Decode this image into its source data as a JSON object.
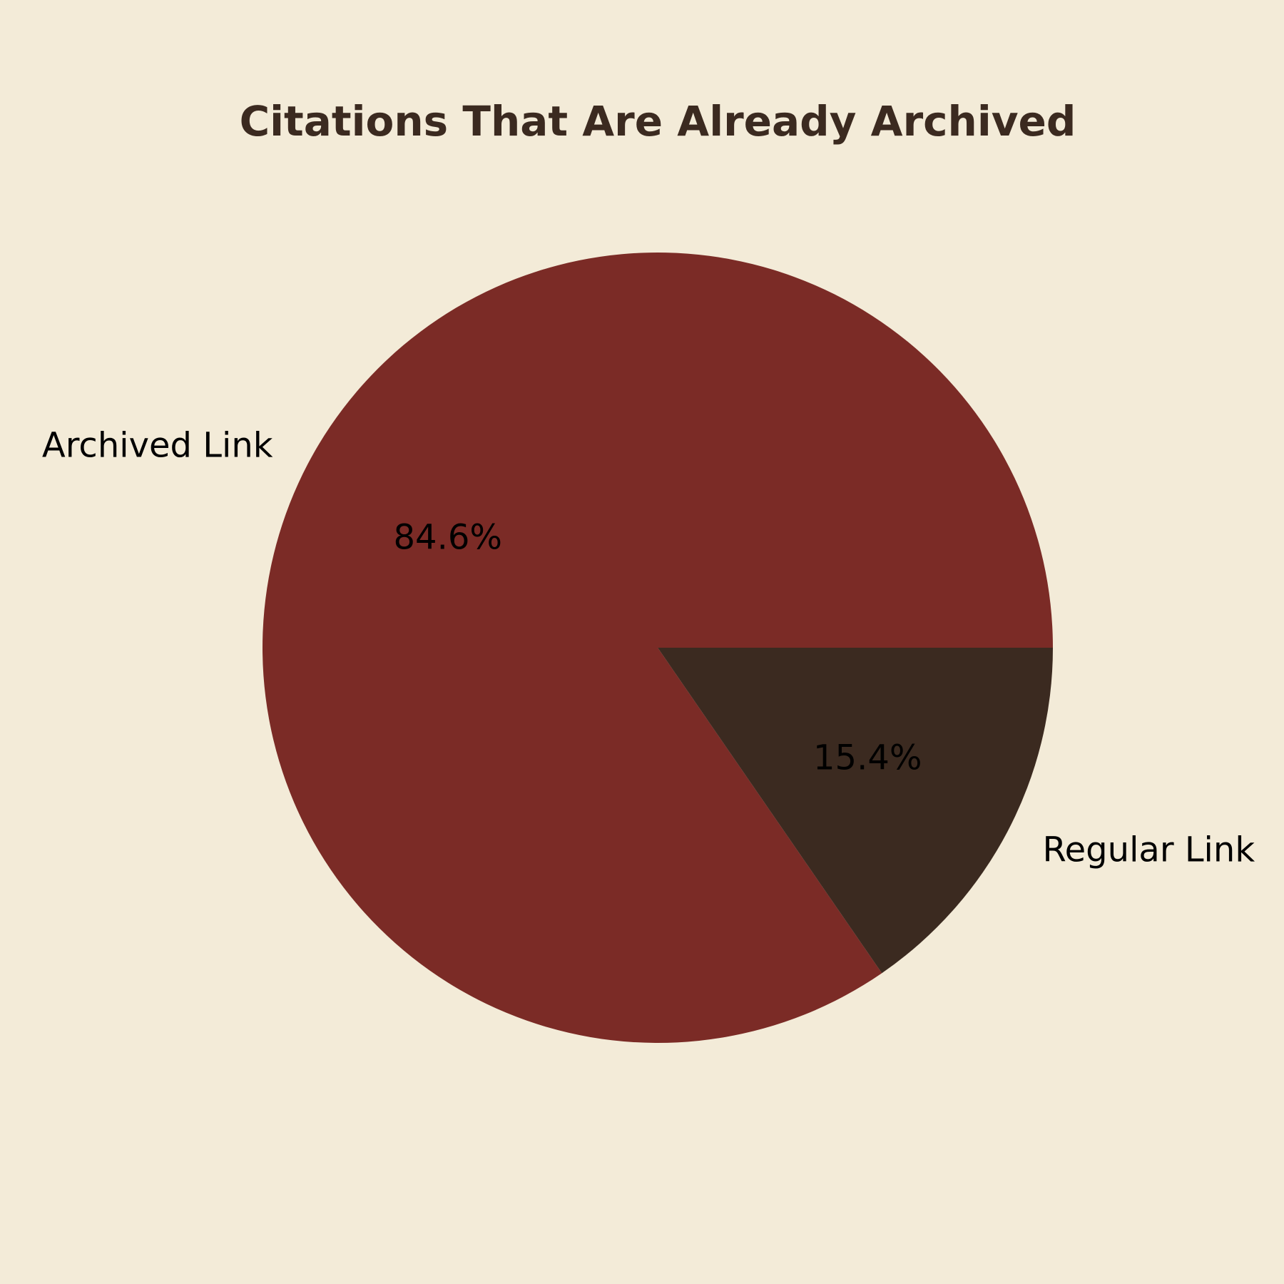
{
  "colors": {
    "background": "#F3EBD8",
    "title": "#3B2A20",
    "text": "#000000"
  },
  "chart_data": {
    "type": "pie",
    "title": "Citations That Are Already Archived",
    "start_angle_deg": 0,
    "direction": "counterclockwise",
    "slices": [
      {
        "label": "Archived Link",
        "value": 84.6,
        "display": "84.6%",
        "color": "#7B2B26"
      },
      {
        "label": "Regular Link",
        "value": 15.4,
        "display": "15.4%",
        "color": "#3B2A20"
      }
    ]
  }
}
